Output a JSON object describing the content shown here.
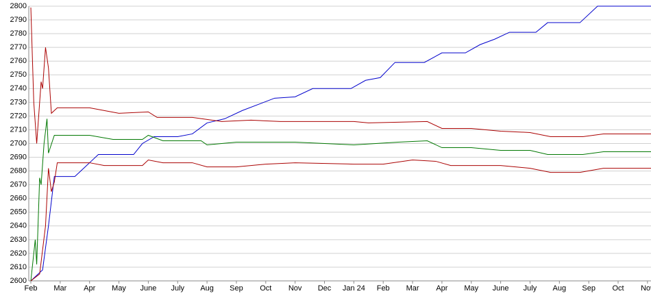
{
  "chart_data": {
    "type": "line",
    "xlim": [
      -0.07,
      21.12
    ],
    "ylim": [
      2600,
      2800
    ],
    "yticks": [
      2600,
      2610,
      2620,
      2630,
      2640,
      2650,
      2660,
      2670,
      2680,
      2690,
      2700,
      2710,
      2720,
      2730,
      2740,
      2750,
      2760,
      2770,
      2780,
      2790,
      2800
    ],
    "xticks": [
      {
        "value": 0,
        "label": "Feb"
      },
      {
        "value": 1,
        "label": "Mar"
      },
      {
        "value": 2,
        "label": "Apr"
      },
      {
        "value": 3,
        "label": "May"
      },
      {
        "value": 4,
        "label": "June"
      },
      {
        "value": 5,
        "label": "July"
      },
      {
        "value": 6,
        "label": "Aug"
      },
      {
        "value": 7,
        "label": "Sep"
      },
      {
        "value": 8,
        "label": "Oct"
      },
      {
        "value": 9,
        "label": "Nov"
      },
      {
        "value": 10,
        "label": "Dec"
      },
      {
        "value": 11,
        "label": "Jan 24"
      },
      {
        "value": 12,
        "label": "Feb"
      },
      {
        "value": 13,
        "label": "Mar"
      },
      {
        "value": 14,
        "label": "Apr"
      },
      {
        "value": 15,
        "label": "May"
      },
      {
        "value": 16,
        "label": "June"
      },
      {
        "value": 17,
        "label": "July"
      },
      {
        "value": 18,
        "label": "Aug"
      },
      {
        "value": 19,
        "label": "Sep"
      },
      {
        "value": 20,
        "label": "Oct"
      },
      {
        "value": 21,
        "label": "Nov"
      }
    ],
    "grid": true,
    "series": [
      {
        "color": "#0000cc",
        "x": [
          0,
          0.4,
          0.6,
          0.8,
          1.5,
          1.8,
          2.0,
          2.3,
          3.5,
          3.8,
          4.2,
          5.0,
          5.5,
          6.0,
          6.6,
          7.2,
          8.3,
          9.0,
          9.6,
          10.9,
          11.4,
          11.9,
          12.4,
          13.4,
          14.0,
          14.8,
          15.3,
          15.8,
          16.3,
          17.2,
          17.6,
          18.7,
          19.3,
          21.12
        ],
        "values": [
          2600,
          2608,
          2640,
          2676,
          2676,
          2682,
          2686,
          2692,
          2692,
          2700,
          2705,
          2705,
          2707,
          2715,
          2718,
          2724,
          2733,
          2734,
          2740,
          2740,
          2746,
          2748,
          2759,
          2759,
          2766,
          2766,
          2772,
          2776,
          2781,
          2781,
          2788,
          2788,
          2800,
          2800
        ]
      },
      {
        "color": "#aa0000",
        "x": [
          0,
          0.1,
          0.2,
          0.35,
          0.4,
          0.5,
          0.6,
          0.7,
          0.9,
          2.0,
          2.5,
          3.0,
          4.0,
          4.3,
          5.5,
          6.5,
          7.5,
          8.5,
          11.0,
          11.5,
          13.5,
          14.0,
          15.0,
          16.0,
          17.0,
          17.7,
          18.8,
          19.5,
          21.12
        ],
        "values": [
          2799,
          2730,
          2700,
          2745,
          2740,
          2770,
          2755,
          2722,
          2726,
          2726,
          2724,
          2722,
          2723,
          2719,
          2719,
          2716,
          2717,
          2716,
          2716,
          2715,
          2716,
          2711,
          2711,
          2709,
          2708,
          2705,
          2705,
          2707,
          2707
        ]
      },
      {
        "color": "#007700",
        "x": [
          0,
          0.15,
          0.2,
          0.3,
          0.35,
          0.45,
          0.55,
          0.6,
          0.8,
          2.0,
          2.8,
          3.8,
          4.0,
          4.5,
          5.8,
          6.0,
          7.0,
          9.0,
          11.0,
          12.5,
          13.5,
          14.0,
          15.0,
          16.0,
          17.0,
          17.6,
          18.8,
          19.5,
          21.12
        ],
        "values": [
          2600,
          2630,
          2612,
          2675,
          2670,
          2700,
          2718,
          2693,
          2706,
          2706,
          2703,
          2703,
          2706,
          2702,
          2702,
          2699,
          2701,
          2701,
          2699,
          2701,
          2702,
          2697,
          2697,
          2695,
          2695,
          2692,
          2692,
          2694,
          2694
        ]
      },
      {
        "color": "#aa0000",
        "x": [
          0,
          0.3,
          0.5,
          0.6,
          0.7,
          0.8,
          0.9,
          2.0,
          2.5,
          3.8,
          4.0,
          4.5,
          5.5,
          6.0,
          7.0,
          8.0,
          9.0,
          11.0,
          12.0,
          13.0,
          13.8,
          14.3,
          16.0,
          17.0,
          17.7,
          18.7,
          19.5,
          21.12
        ],
        "values": [
          2600,
          2605,
          2640,
          2682,
          2665,
          2672,
          2686,
          2686,
          2684,
          2684,
          2688,
          2686,
          2686,
          2683,
          2683,
          2685,
          2686,
          2685,
          2685,
          2688,
          2687,
          2684,
          2684,
          2682,
          2679,
          2679,
          2682,
          2682
        ]
      }
    ]
  }
}
